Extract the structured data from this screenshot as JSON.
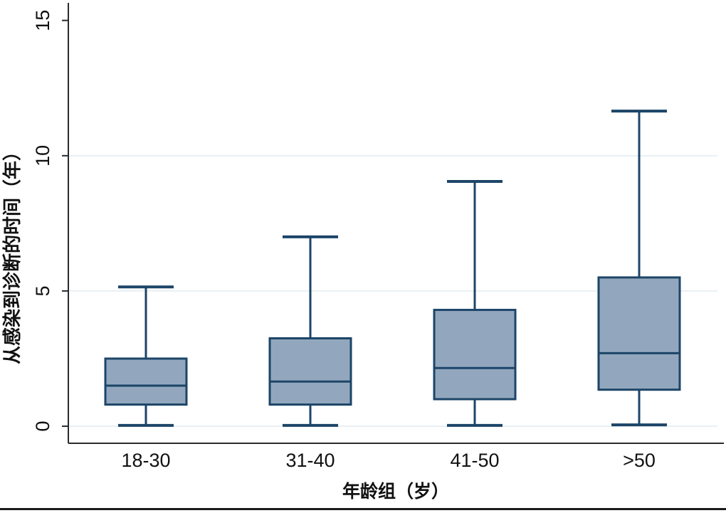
{
  "chart_data": {
    "type": "box",
    "title": "",
    "xlabel": "年龄组（岁）",
    "ylabel": "从感染到诊断的时间（年）",
    "categories": [
      "18-30",
      "31-40",
      "41-50",
      ">50"
    ],
    "series": [
      {
        "name": "18-30",
        "min": 0.03,
        "q1": 0.8,
        "median": 1.5,
        "q3": 2.5,
        "max": 5.15
      },
      {
        "name": "31-40",
        "min": 0.03,
        "q1": 0.8,
        "median": 1.65,
        "q3": 3.25,
        "max": 7.0
      },
      {
        "name": "41-50",
        "min": 0.03,
        "q1": 1.0,
        "median": 2.15,
        "q3": 4.3,
        "max": 9.05
      },
      {
        "name": ">50",
        "min": 0.05,
        "q1": 1.35,
        "median": 2.7,
        "q3": 5.5,
        "max": 11.65
      }
    ],
    "y_ticks": [
      0,
      5,
      10,
      15
    ],
    "grid_ticks": [
      0,
      5,
      10
    ],
    "ylim": [
      -0.63,
      15.65
    ],
    "grid": true,
    "legend": "none",
    "colors": {
      "box_fill": "#92a7bd",
      "box_stroke": "#1c4568",
      "axis": "#2b2b2b",
      "grid": "#e8f0f4",
      "text": "#111111",
      "bottom_rule": "#1a1a1a"
    }
  }
}
